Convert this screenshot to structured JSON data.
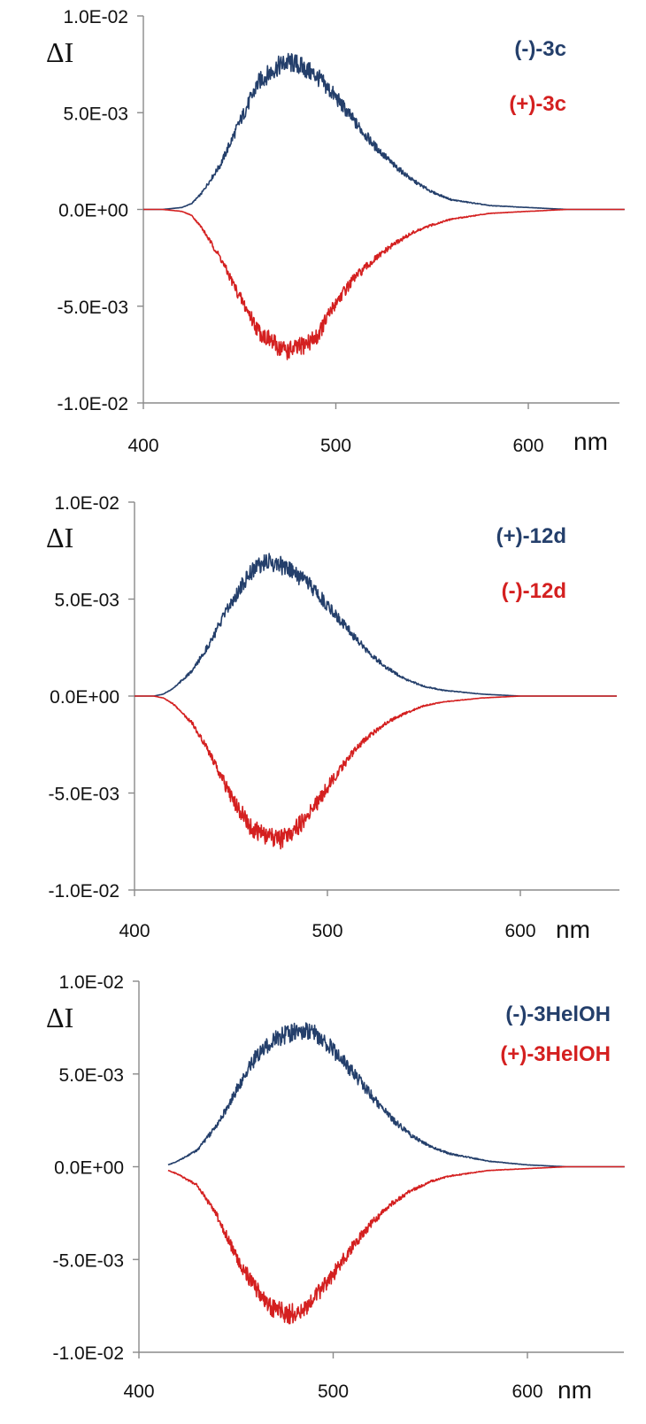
{
  "chart_data": [
    {
      "type": "line",
      "ylabel": "ΔI",
      "xunit": "nm",
      "xlim": [
        400,
        650
      ],
      "ylim": [
        -0.01,
        0.01
      ],
      "xticks": [
        400,
        500,
        600
      ],
      "xtick_labels": [
        "400",
        "500",
        "600"
      ],
      "yticks": [
        0.01,
        0.005,
        0,
        -0.005,
        -0.01
      ],
      "ytick_labels": [
        "1.0E-02",
        "5.0E-03",
        "0.0E+00",
        "-5.0E-03",
        "-1.0E-02"
      ],
      "grid": false,
      "legend_position": "top-right",
      "series": [
        {
          "name": "(-)-3c",
          "color": "#243f6b",
          "x": [
            400,
            410,
            420,
            425,
            430,
            440,
            450,
            460,
            470,
            475,
            480,
            490,
            500,
            510,
            520,
            530,
            540,
            550,
            560,
            580,
            600,
            620,
            650
          ],
          "y": [
            0,
            0,
            0.0001,
            0.0003,
            0.0008,
            0.0023,
            0.0045,
            0.0066,
            0.0074,
            0.0076,
            0.0075,
            0.0069,
            0.0058,
            0.0045,
            0.0033,
            0.0023,
            0.0015,
            0.0009,
            0.0005,
            0.0002,
            0.0001,
            0,
            0
          ]
        },
        {
          "name": "(+)-3c",
          "color": "#d42020",
          "x": [
            400,
            410,
            420,
            425,
            430,
            440,
            450,
            460,
            470,
            475,
            480,
            490,
            500,
            510,
            520,
            530,
            540,
            550,
            560,
            580,
            600,
            620,
            650
          ],
          "y": [
            0,
            0,
            -0.0001,
            -0.0003,
            -0.0009,
            -0.0025,
            -0.0045,
            -0.0063,
            -0.0071,
            -0.0073,
            -0.0072,
            -0.0066,
            -0.0048,
            -0.0035,
            -0.0026,
            -0.0018,
            -0.0012,
            -0.0008,
            -0.0005,
            -0.0002,
            -0.0001,
            0,
            0
          ]
        }
      ]
    },
    {
      "type": "line",
      "ylabel": "ΔI",
      "xunit": "nm",
      "xlim": [
        400,
        650
      ],
      "ylim": [
        -0.01,
        0.01
      ],
      "xticks": [
        400,
        500,
        600
      ],
      "xtick_labels": [
        "400",
        "500",
        "600"
      ],
      "yticks": [
        0.01,
        0.005,
        0,
        -0.005,
        -0.01
      ],
      "ytick_labels": [
        "1.0E-02",
        "5.0E-03",
        "0.0E+00",
        "-5.0E-03",
        "-1.0E-02"
      ],
      "grid": false,
      "legend_position": "top-right",
      "series": [
        {
          "name": "(+)-12d",
          "color": "#243f6b",
          "x": [
            400,
            410,
            415,
            420,
            430,
            440,
            450,
            460,
            465,
            470,
            475,
            480,
            490,
            500,
            510,
            520,
            530,
            540,
            550,
            560,
            580,
            600,
            620,
            650
          ],
          "y": [
            0,
            0,
            0.0001,
            0.0004,
            0.0013,
            0.0029,
            0.0048,
            0.0064,
            0.0068,
            0.0069,
            0.0068,
            0.0065,
            0.0058,
            0.0047,
            0.0035,
            0.0024,
            0.0015,
            0.0009,
            0.0005,
            0.0003,
            0.0001,
            0,
            0,
            0
          ]
        },
        {
          "name": "(-)-12d",
          "color": "#d42020",
          "x": [
            400,
            410,
            415,
            420,
            430,
            440,
            450,
            460,
            465,
            470,
            475,
            480,
            490,
            500,
            510,
            520,
            530,
            540,
            550,
            560,
            580,
            600,
            620,
            650
          ],
          "y": [
            0,
            0,
            -0.0001,
            -0.0004,
            -0.0014,
            -0.0031,
            -0.0052,
            -0.0067,
            -0.0071,
            -0.0073,
            -0.0074,
            -0.0072,
            -0.0062,
            -0.0047,
            -0.0033,
            -0.0022,
            -0.0014,
            -0.0009,
            -0.0005,
            -0.0003,
            -0.0001,
            0,
            0,
            0
          ]
        }
      ]
    },
    {
      "type": "line",
      "ylabel": "ΔI",
      "xunit": "nm",
      "xlim": [
        400,
        650
      ],
      "ylim": [
        -0.01,
        0.01
      ],
      "xticks": [
        400,
        500,
        600
      ],
      "xtick_labels": [
        "400",
        "500",
        "600"
      ],
      "yticks": [
        0.01,
        0.005,
        0,
        -0.005,
        -0.01
      ],
      "ytick_labels": [
        "1.0E-02",
        "5.0E-03",
        "0.0E+00",
        "-5.0E-03",
        "-1.0E-02"
      ],
      "grid": false,
      "legend_position": "top-right",
      "series": [
        {
          "name": "(-)-3HelOH",
          "color": "#243f6b",
          "x": [
            415,
            420,
            430,
            440,
            450,
            460,
            470,
            480,
            485,
            490,
            500,
            510,
            520,
            530,
            540,
            550,
            560,
            580,
            600,
            620,
            650
          ],
          "y": [
            0.0001,
            0.0003,
            0.0009,
            0.0022,
            0.0041,
            0.0059,
            0.0069,
            0.0073,
            0.0074,
            0.0072,
            0.0063,
            0.0051,
            0.0038,
            0.0026,
            0.0017,
            0.0011,
            0.0007,
            0.0003,
            0.0001,
            0,
            0
          ]
        },
        {
          "name": "(+)-3HelOH",
          "color": "#d42020",
          "x": [
            415,
            420,
            430,
            440,
            450,
            460,
            470,
            475,
            480,
            485,
            490,
            500,
            510,
            520,
            530,
            540,
            550,
            560,
            580,
            600,
            620,
            650
          ],
          "y": [
            -0.0002,
            -0.0004,
            -0.001,
            -0.0026,
            -0.0048,
            -0.0066,
            -0.0077,
            -0.0079,
            -0.0079,
            -0.0076,
            -0.0071,
            -0.0058,
            -0.0043,
            -0.003,
            -0.002,
            -0.0013,
            -0.0008,
            -0.0005,
            -0.0002,
            -0.0001,
            0,
            0
          ]
        }
      ]
    }
  ]
}
